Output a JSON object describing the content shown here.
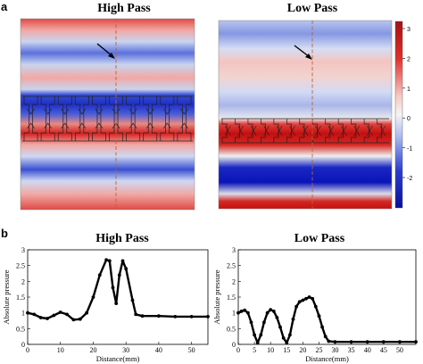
{
  "figure": {
    "panel_a_label": "a",
    "panel_b_label": "b",
    "top_left_title": "High Pass",
    "top_right_title": "Low Pass",
    "bottom_left_title": "High Pass",
    "bottom_right_title": "Low Pass",
    "colorbar_ticks": [
      "3",
      "2",
      "1",
      "0",
      "-1",
      "-2"
    ],
    "colors": {
      "red": "#d7201e",
      "white": "#f2f2f2",
      "blue": "#1f2fc8",
      "dark_red": "#c40f0f",
      "dark_blue": "#0a14b8",
      "dashed_line": "#b5653a"
    }
  },
  "chart_data": [
    {
      "type": "line",
      "title": "High Pass",
      "xlabel": "Distance(mm)",
      "ylabel": "Absolute pressure",
      "xlim": [
        0,
        55
      ],
      "ylim": [
        0,
        3
      ],
      "xticks": [
        "0",
        "10",
        "20",
        "30",
        "40",
        "50"
      ],
      "yticks": [
        "0",
        "0.5",
        "1",
        "1.5",
        "2",
        "2.5",
        "3"
      ],
      "x": [
        0,
        2,
        4,
        6,
        8,
        10,
        12,
        14,
        16,
        18,
        20,
        22,
        24,
        25,
        26,
        27,
        28,
        29,
        30,
        32,
        33,
        35,
        40,
        45,
        50,
        55
      ],
      "y": [
        1.0,
        0.95,
        0.85,
        0.82,
        0.92,
        1.02,
        0.95,
        0.78,
        0.8,
        1.0,
        1.5,
        2.2,
        2.68,
        2.65,
        1.8,
        1.3,
        2.2,
        2.65,
        2.4,
        1.4,
        0.95,
        0.9,
        0.9,
        0.88,
        0.88,
        0.88
      ]
    },
    {
      "type": "line",
      "title": "Low Pass",
      "xlabel": "Distance(mm)",
      "ylabel": "Absolute pressure",
      "xlim": [
        0,
        55
      ],
      "ylim": [
        0,
        3
      ],
      "xticks": [
        "0",
        "5",
        "10",
        "15",
        "20",
        "25",
        "30",
        "35",
        "40",
        "45",
        "50"
      ],
      "yticks": [
        "0",
        "0.5",
        "1",
        "1.5",
        "2",
        "2.5",
        "3"
      ],
      "x": [
        0,
        1,
        2,
        3,
        4,
        5,
        6,
        7,
        8,
        9,
        10,
        11,
        12,
        13,
        14,
        15,
        16,
        17,
        18,
        19,
        20,
        21,
        22,
        23,
        24,
        25,
        26,
        27,
        28,
        30,
        35,
        40,
        45,
        50,
        55
      ],
      "y": [
        1.0,
        1.05,
        1.08,
        1.0,
        0.7,
        0.3,
        0.05,
        0.3,
        0.7,
        1.0,
        1.1,
        1.05,
        0.85,
        0.55,
        0.2,
        0.05,
        0.3,
        0.8,
        1.2,
        1.35,
        1.4,
        1.45,
        1.5,
        1.45,
        1.2,
        0.9,
        0.55,
        0.25,
        0.1,
        0.08,
        0.08,
        0.08,
        0.08,
        0.08,
        0.08
      ]
    }
  ]
}
